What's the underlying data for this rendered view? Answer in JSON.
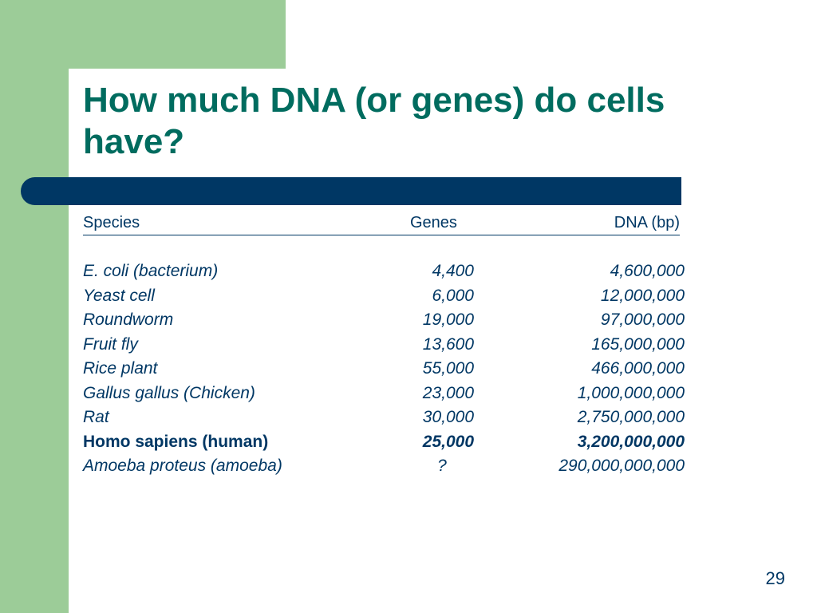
{
  "slide": {
    "title": "How much DNA (or genes) do cells have?",
    "page_number": "29",
    "colors": {
      "accent_green": "#9ccc98",
      "title_teal": "#006c5f",
      "navy": "#003764"
    }
  },
  "table": {
    "headers": {
      "species": "Species",
      "genes": "Genes",
      "dna": "DNA (bp)"
    },
    "rows": [
      {
        "species": "E. coli (bacterium)",
        "genes": "4,400",
        "dna": "4,600,000"
      },
      {
        "species": "Yeast cell",
        "genes": "6,000",
        "dna": "12,000,000"
      },
      {
        "species": "Roundworm",
        "genes": "19,000",
        "dna": "97,000,000"
      },
      {
        "species": "Fruit fly",
        "genes": "13,600",
        "dna": "165,000,000"
      },
      {
        "species": "Rice plant",
        "genes": "55,000",
        "dna": "466,000,000"
      },
      {
        "species": "Gallus gallus (Chicken)",
        "genes": "23,000",
        "dna": "1,000,000,000"
      },
      {
        "species": "Rat",
        "genes": "30,000",
        "dna": "2,750,000,000"
      },
      {
        "species": "Homo sapiens (human)",
        "genes": "25,000",
        "dna": "3,200,000,000"
      },
      {
        "species": "Amoeba proteus (amoeba)",
        "genes": "?",
        "dna": "290,000,000,000"
      }
    ]
  }
}
